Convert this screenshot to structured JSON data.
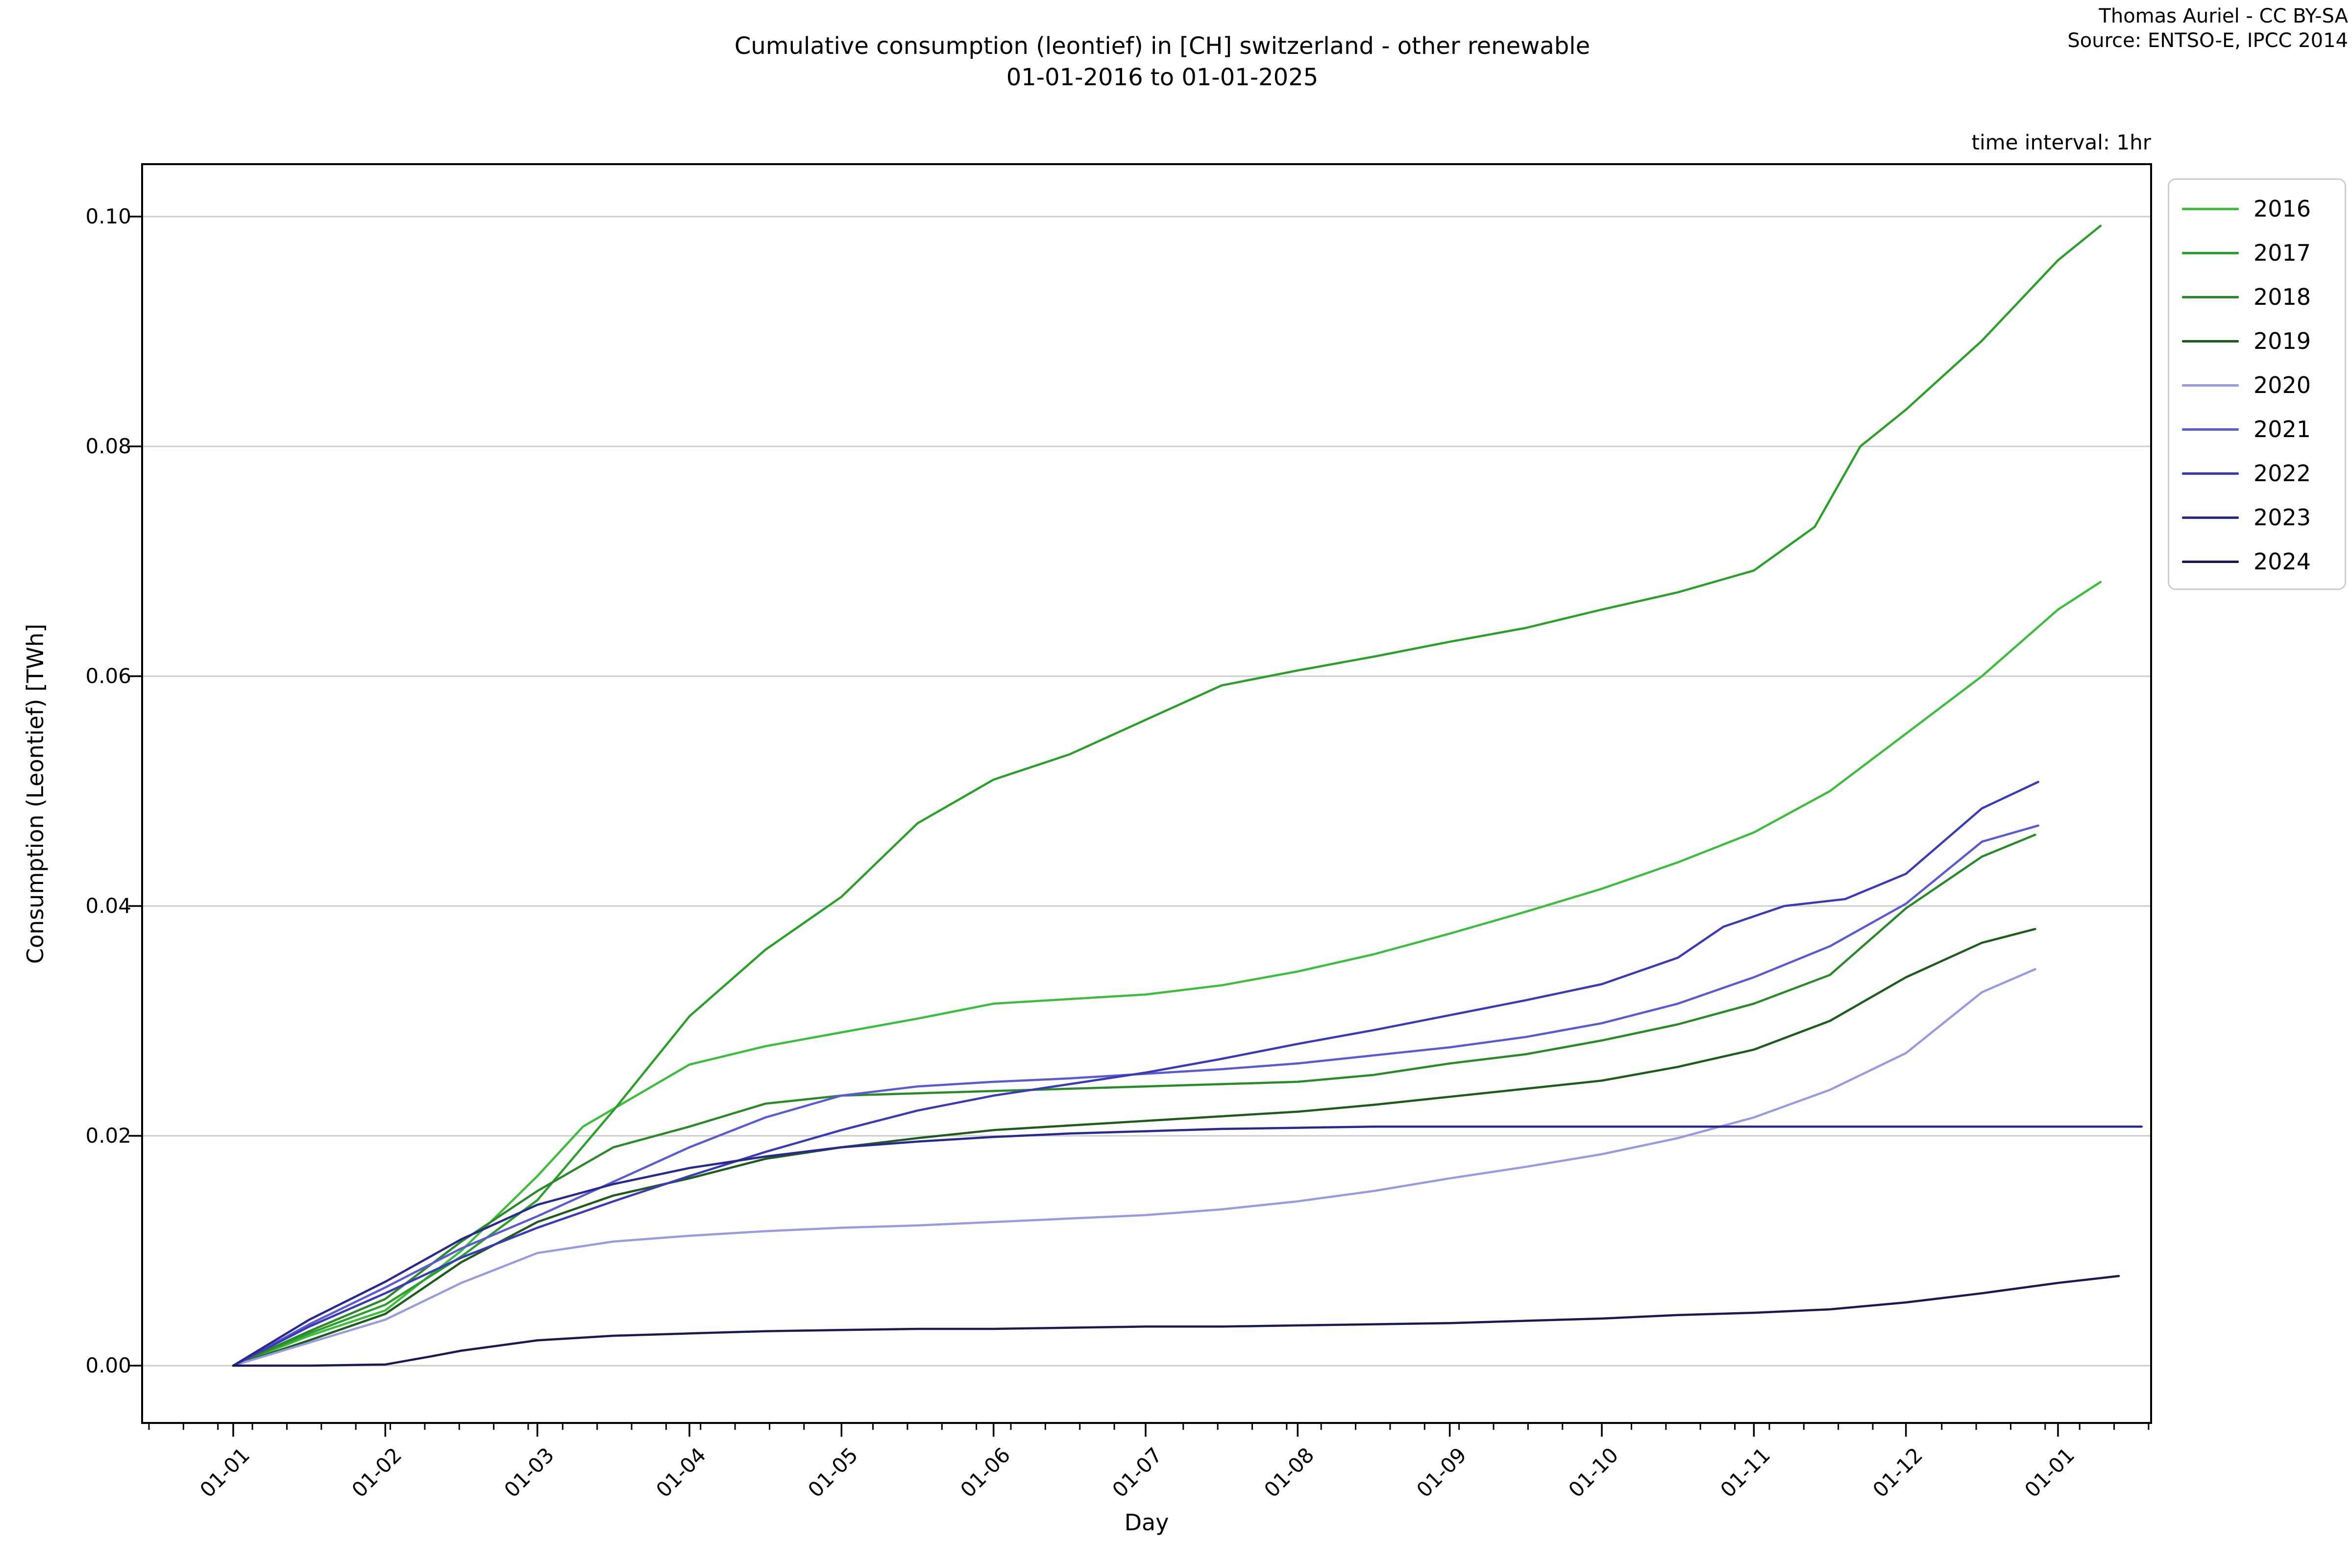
{
  "header": {
    "title_line1": "Cumulative consumption (leontief) in [CH] switzerland - other renewable",
    "title_line2": "01-01-2016 to 01-01-2025",
    "credit_line1": "Thomas Auriel - CC BY-SA",
    "credit_line2": "Source: ENTSO-E, IPCC 2014",
    "note": "time interval: 1hr"
  },
  "chart_data": {
    "type": "line",
    "title": "Cumulative consumption (leontief) in [CH] switzerland - other renewable 01-01-2016 to 01-01-2025",
    "xlabel": "Day",
    "ylabel": "Consumption (Leontief) [TWh]",
    "x_tick_labels": [
      "01-01",
      "01-02",
      "01-03",
      "01-04",
      "01-05",
      "01-06",
      "01-07",
      "01-08",
      "01-09",
      "01-10",
      "01-11",
      "01-12",
      "01-01"
    ],
    "y_ticks": [
      0.0,
      0.02,
      0.04,
      0.06,
      0.08,
      0.1
    ],
    "y_tick_labels": [
      "0.00",
      "0.02",
      "0.04",
      "0.06",
      "0.08",
      "0.10"
    ],
    "ylim": [
      -0.005,
      0.1046
    ],
    "xlim_months": [
      -0.6,
      12.61
    ],
    "grid": "horizontal",
    "grid_color": "#cccccc",
    "axis_color": "#000000",
    "legend_position": "upper right",
    "legend_title": "",
    "units": "TWh",
    "series": [
      {
        "name": "2016",
        "color": "#3dbd3d",
        "points": [
          [
            0,
            0
          ],
          [
            0.5,
            0.0026
          ],
          [
            1,
            0.0048
          ],
          [
            1.5,
            0.01
          ],
          [
            2,
            0.0165
          ],
          [
            2.3,
            0.0208
          ],
          [
            3,
            0.0262
          ],
          [
            3.5,
            0.0278
          ],
          [
            4,
            0.029
          ],
          [
            4.5,
            0.0302
          ],
          [
            5,
            0.0315
          ],
          [
            5.5,
            0.0319
          ],
          [
            6,
            0.0323
          ],
          [
            6.5,
            0.0331
          ],
          [
            7,
            0.0343
          ],
          [
            7.5,
            0.0358
          ],
          [
            8,
            0.0376
          ],
          [
            8.5,
            0.0395
          ],
          [
            9,
            0.0415
          ],
          [
            9.5,
            0.0438
          ],
          [
            10,
            0.0464
          ],
          [
            10.5,
            0.05
          ],
          [
            11,
            0.055
          ],
          [
            11.5,
            0.06
          ],
          [
            12,
            0.0658
          ],
          [
            12.28,
            0.0682
          ]
        ]
      },
      {
        "name": "2017",
        "color": "#2aa02a",
        "points": [
          [
            0,
            0
          ],
          [
            0.5,
            0.0028
          ],
          [
            1,
            0.0053
          ],
          [
            1.5,
            0.0095
          ],
          [
            2,
            0.0144
          ],
          [
            2.5,
            0.0222
          ],
          [
            3,
            0.0304
          ],
          [
            3.5,
            0.0362
          ],
          [
            4,
            0.0408
          ],
          [
            4.5,
            0.0472
          ],
          [
            5,
            0.051
          ],
          [
            5.5,
            0.0532
          ],
          [
            6,
            0.0562
          ],
          [
            6.5,
            0.0592
          ],
          [
            7,
            0.0605
          ],
          [
            7.5,
            0.0617
          ],
          [
            8,
            0.063
          ],
          [
            8.5,
            0.0642
          ],
          [
            9,
            0.0658
          ],
          [
            9.5,
            0.0673
          ],
          [
            10,
            0.0692
          ],
          [
            10.4,
            0.073
          ],
          [
            10.7,
            0.08
          ],
          [
            11,
            0.0832
          ],
          [
            11.5,
            0.0892
          ],
          [
            12,
            0.0962
          ],
          [
            12.28,
            0.0992
          ]
        ]
      },
      {
        "name": "2018",
        "color": "#2a8a2a",
        "points": [
          [
            0,
            0
          ],
          [
            0.5,
            0.003
          ],
          [
            1,
            0.0058
          ],
          [
            1.5,
            0.0108
          ],
          [
            2,
            0.0152
          ],
          [
            2.5,
            0.019
          ],
          [
            3,
            0.0208
          ],
          [
            3.5,
            0.0228
          ],
          [
            4,
            0.0235
          ],
          [
            4.5,
            0.0237
          ],
          [
            5,
            0.0239
          ],
          [
            5.5,
            0.0241
          ],
          [
            6,
            0.0243
          ],
          [
            6.5,
            0.0245
          ],
          [
            7,
            0.0247
          ],
          [
            7.5,
            0.0253
          ],
          [
            8,
            0.0263
          ],
          [
            8.5,
            0.0271
          ],
          [
            9,
            0.0283
          ],
          [
            9.5,
            0.0297
          ],
          [
            10,
            0.0315
          ],
          [
            10.5,
            0.034
          ],
          [
            11,
            0.0398
          ],
          [
            11.5,
            0.0443
          ],
          [
            11.85,
            0.0462
          ]
        ]
      },
      {
        "name": "2019",
        "color": "#1d5c1d",
        "points": [
          [
            0,
            0
          ],
          [
            0.5,
            0.0022
          ],
          [
            1,
            0.0045
          ],
          [
            1.5,
            0.009
          ],
          [
            2,
            0.0125
          ],
          [
            2.5,
            0.0148
          ],
          [
            3,
            0.0163
          ],
          [
            3.5,
            0.018
          ],
          [
            4,
            0.019
          ],
          [
            4.5,
            0.0198
          ],
          [
            5,
            0.0205
          ],
          [
            5.5,
            0.0209
          ],
          [
            6,
            0.0213
          ],
          [
            6.5,
            0.0217
          ],
          [
            7,
            0.0221
          ],
          [
            7.5,
            0.0227
          ],
          [
            8,
            0.0234
          ],
          [
            8.5,
            0.0241
          ],
          [
            9,
            0.0248
          ],
          [
            9.5,
            0.026
          ],
          [
            10,
            0.0275
          ],
          [
            10.5,
            0.03
          ],
          [
            11,
            0.0338
          ],
          [
            11.5,
            0.0368
          ],
          [
            11.85,
            0.038
          ]
        ]
      },
      {
        "name": "2020",
        "color": "#9a9ae0",
        "points": [
          [
            0,
            0
          ],
          [
            0.5,
            0.002
          ],
          [
            1,
            0.004
          ],
          [
            1.5,
            0.0072
          ],
          [
            2,
            0.0098
          ],
          [
            2.5,
            0.0108
          ],
          [
            3,
            0.0113
          ],
          [
            3.5,
            0.0117
          ],
          [
            4,
            0.012
          ],
          [
            4.5,
            0.0122
          ],
          [
            5,
            0.0125
          ],
          [
            5.5,
            0.0128
          ],
          [
            6,
            0.0131
          ],
          [
            6.5,
            0.0136
          ],
          [
            7,
            0.0143
          ],
          [
            7.5,
            0.0152
          ],
          [
            8,
            0.0163
          ],
          [
            8.5,
            0.0173
          ],
          [
            9,
            0.0184
          ],
          [
            9.5,
            0.0198
          ],
          [
            10,
            0.0216
          ],
          [
            10.5,
            0.024
          ],
          [
            11,
            0.0272
          ],
          [
            11.5,
            0.0325
          ],
          [
            11.85,
            0.0345
          ]
        ]
      },
      {
        "name": "2021",
        "color": "#5a5ad2",
        "points": [
          [
            0,
            0
          ],
          [
            0.5,
            0.0036
          ],
          [
            1,
            0.0068
          ],
          [
            1.5,
            0.0102
          ],
          [
            2,
            0.013
          ],
          [
            2.5,
            0.016
          ],
          [
            3,
            0.019
          ],
          [
            3.5,
            0.0216
          ],
          [
            4,
            0.0235
          ],
          [
            4.5,
            0.0243
          ],
          [
            5,
            0.0247
          ],
          [
            5.5,
            0.025
          ],
          [
            6,
            0.0254
          ],
          [
            6.5,
            0.0258
          ],
          [
            7,
            0.0263
          ],
          [
            7.5,
            0.027
          ],
          [
            8,
            0.0277
          ],
          [
            8.5,
            0.0286
          ],
          [
            9,
            0.0298
          ],
          [
            9.5,
            0.0315
          ],
          [
            10,
            0.0338
          ],
          [
            10.5,
            0.0365
          ],
          [
            11,
            0.0402
          ],
          [
            11.5,
            0.0456
          ],
          [
            11.87,
            0.047
          ]
        ]
      },
      {
        "name": "2022",
        "color": "#3a3ab8",
        "points": [
          [
            0,
            0
          ],
          [
            0.5,
            0.0034
          ],
          [
            1,
            0.0063
          ],
          [
            1.5,
            0.0094
          ],
          [
            2,
            0.012
          ],
          [
            2.5,
            0.0143
          ],
          [
            3,
            0.0165
          ],
          [
            3.5,
            0.0186
          ],
          [
            4,
            0.0205
          ],
          [
            4.5,
            0.0222
          ],
          [
            5,
            0.0235
          ],
          [
            5.5,
            0.0245
          ],
          [
            6,
            0.0255
          ],
          [
            6.5,
            0.0267
          ],
          [
            7,
            0.028
          ],
          [
            7.5,
            0.0292
          ],
          [
            8,
            0.0305
          ],
          [
            8.5,
            0.0318
          ],
          [
            9,
            0.0332
          ],
          [
            9.5,
            0.0355
          ],
          [
            9.8,
            0.0382
          ],
          [
            10.2,
            0.04
          ],
          [
            10.6,
            0.0406
          ],
          [
            11,
            0.0428
          ],
          [
            11.5,
            0.0485
          ],
          [
            11.87,
            0.0508
          ]
        ]
      },
      {
        "name": "2023",
        "color": "#28288e",
        "points": [
          [
            0,
            0
          ],
          [
            0.5,
            0.004
          ],
          [
            1,
            0.0073
          ],
          [
            1.5,
            0.011
          ],
          [
            2,
            0.014
          ],
          [
            2.5,
            0.0158
          ],
          [
            3,
            0.0172
          ],
          [
            3.5,
            0.0182
          ],
          [
            4,
            0.019
          ],
          [
            4.5,
            0.0195
          ],
          [
            5,
            0.0199
          ],
          [
            5.5,
            0.0202
          ],
          [
            6,
            0.0204
          ],
          [
            6.5,
            0.0206
          ],
          [
            7,
            0.0207
          ],
          [
            7.5,
            0.0208
          ],
          [
            8,
            0.0208
          ],
          [
            9,
            0.0208
          ],
          [
            10,
            0.0208
          ],
          [
            11,
            0.0208
          ],
          [
            12,
            0.0208
          ],
          [
            12.55,
            0.0208
          ]
        ]
      },
      {
        "name": "2024",
        "color": "#1a1a50",
        "points": [
          [
            0,
            0
          ],
          [
            0.5,
            0.0
          ],
          [
            1,
            0.0001
          ],
          [
            1.3,
            0.0008
          ],
          [
            1.5,
            0.0013
          ],
          [
            2,
            0.0022
          ],
          [
            2.5,
            0.0026
          ],
          [
            3,
            0.0028
          ],
          [
            3.5,
            0.003
          ],
          [
            4,
            0.0031
          ],
          [
            4.5,
            0.0032
          ],
          [
            5,
            0.0032
          ],
          [
            5.5,
            0.0033
          ],
          [
            6,
            0.0034
          ],
          [
            6.5,
            0.0034
          ],
          [
            7,
            0.0035
          ],
          [
            7.5,
            0.0036
          ],
          [
            8,
            0.0037
          ],
          [
            8.5,
            0.0039
          ],
          [
            9,
            0.0041
          ],
          [
            9.5,
            0.0044
          ],
          [
            10,
            0.0046
          ],
          [
            10.5,
            0.0049
          ],
          [
            11,
            0.0055
          ],
          [
            11.5,
            0.0063
          ],
          [
            12,
            0.0072
          ],
          [
            12.4,
            0.0078
          ]
        ]
      }
    ]
  },
  "legend": {
    "entries": [
      "2016",
      "2017",
      "2018",
      "2019",
      "2020",
      "2021",
      "2022",
      "2023",
      "2024"
    ]
  }
}
